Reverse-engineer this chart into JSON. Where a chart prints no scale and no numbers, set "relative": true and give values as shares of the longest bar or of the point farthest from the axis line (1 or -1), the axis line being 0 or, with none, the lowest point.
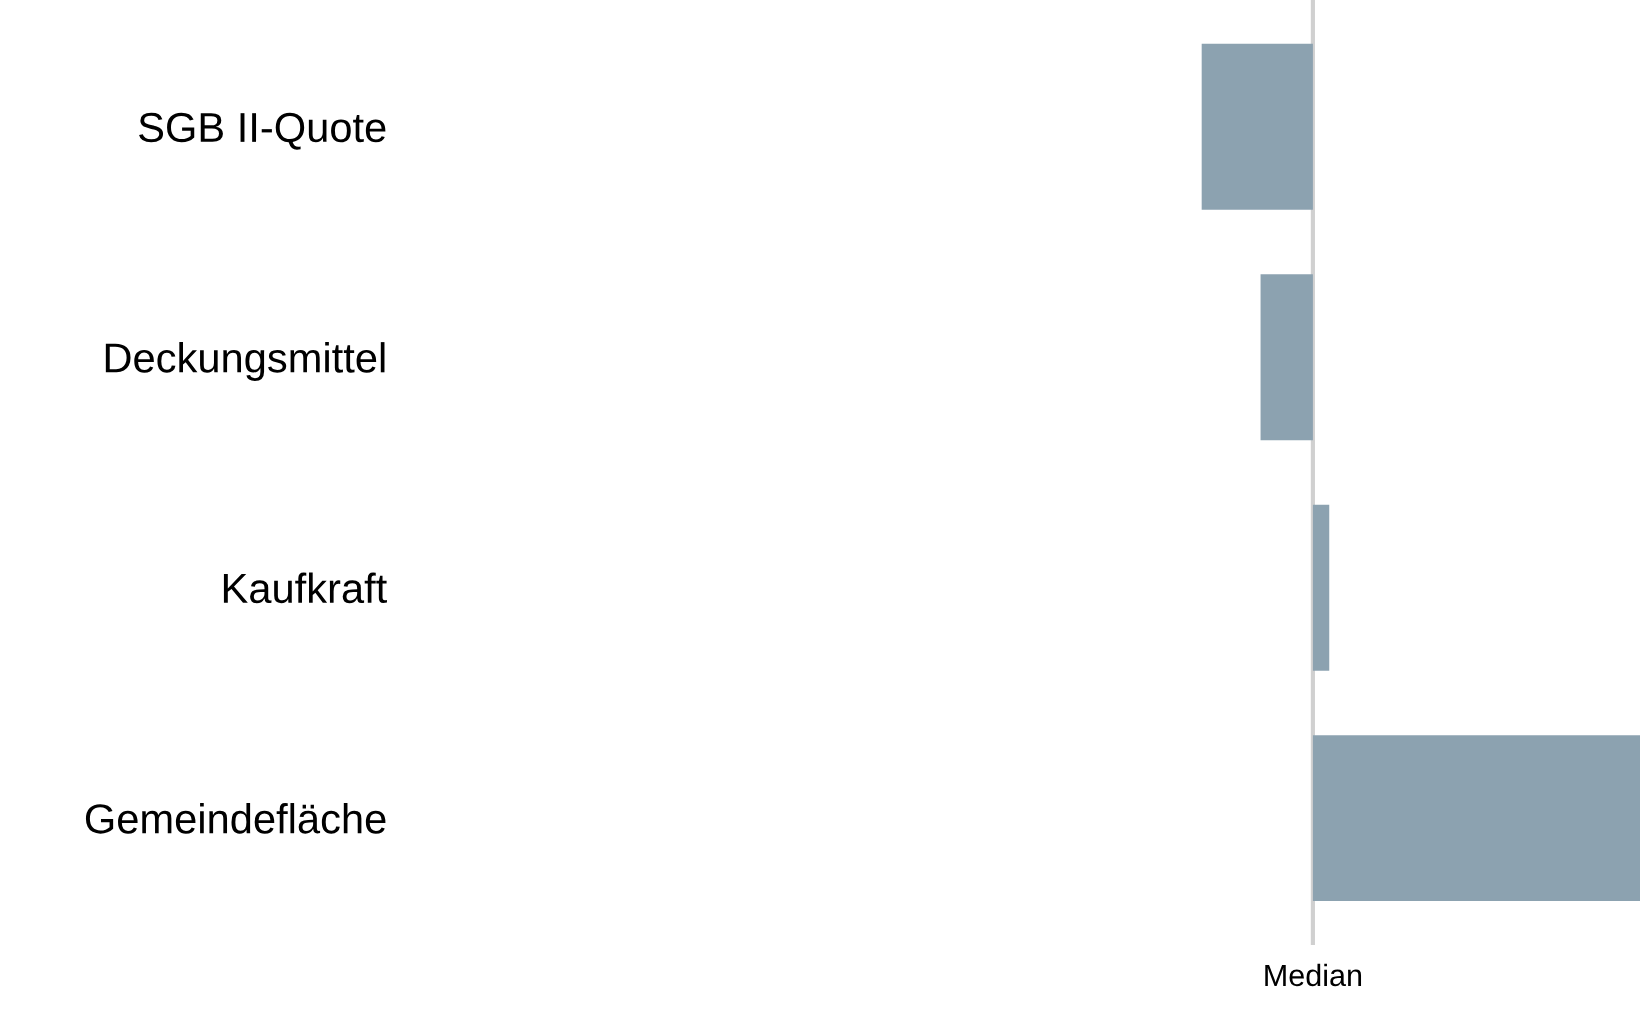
{
  "chart_data": {
    "type": "bar",
    "orientation": "horizontal",
    "relative": true,
    "categories": [
      "SGB II-Quote",
      "Deckungsmittel",
      "Kaufkraft",
      "Gemeindefläche"
    ],
    "values": [
      -0.34,
      -0.16,
      0.05,
      1
    ],
    "color": "#8ca2b0",
    "ref_lines": [
      {
        "axis": "x",
        "value": 0,
        "label": "Median",
        "color": "#d0d0d0"
      }
    ],
    "grid": false,
    "legend": false
  }
}
